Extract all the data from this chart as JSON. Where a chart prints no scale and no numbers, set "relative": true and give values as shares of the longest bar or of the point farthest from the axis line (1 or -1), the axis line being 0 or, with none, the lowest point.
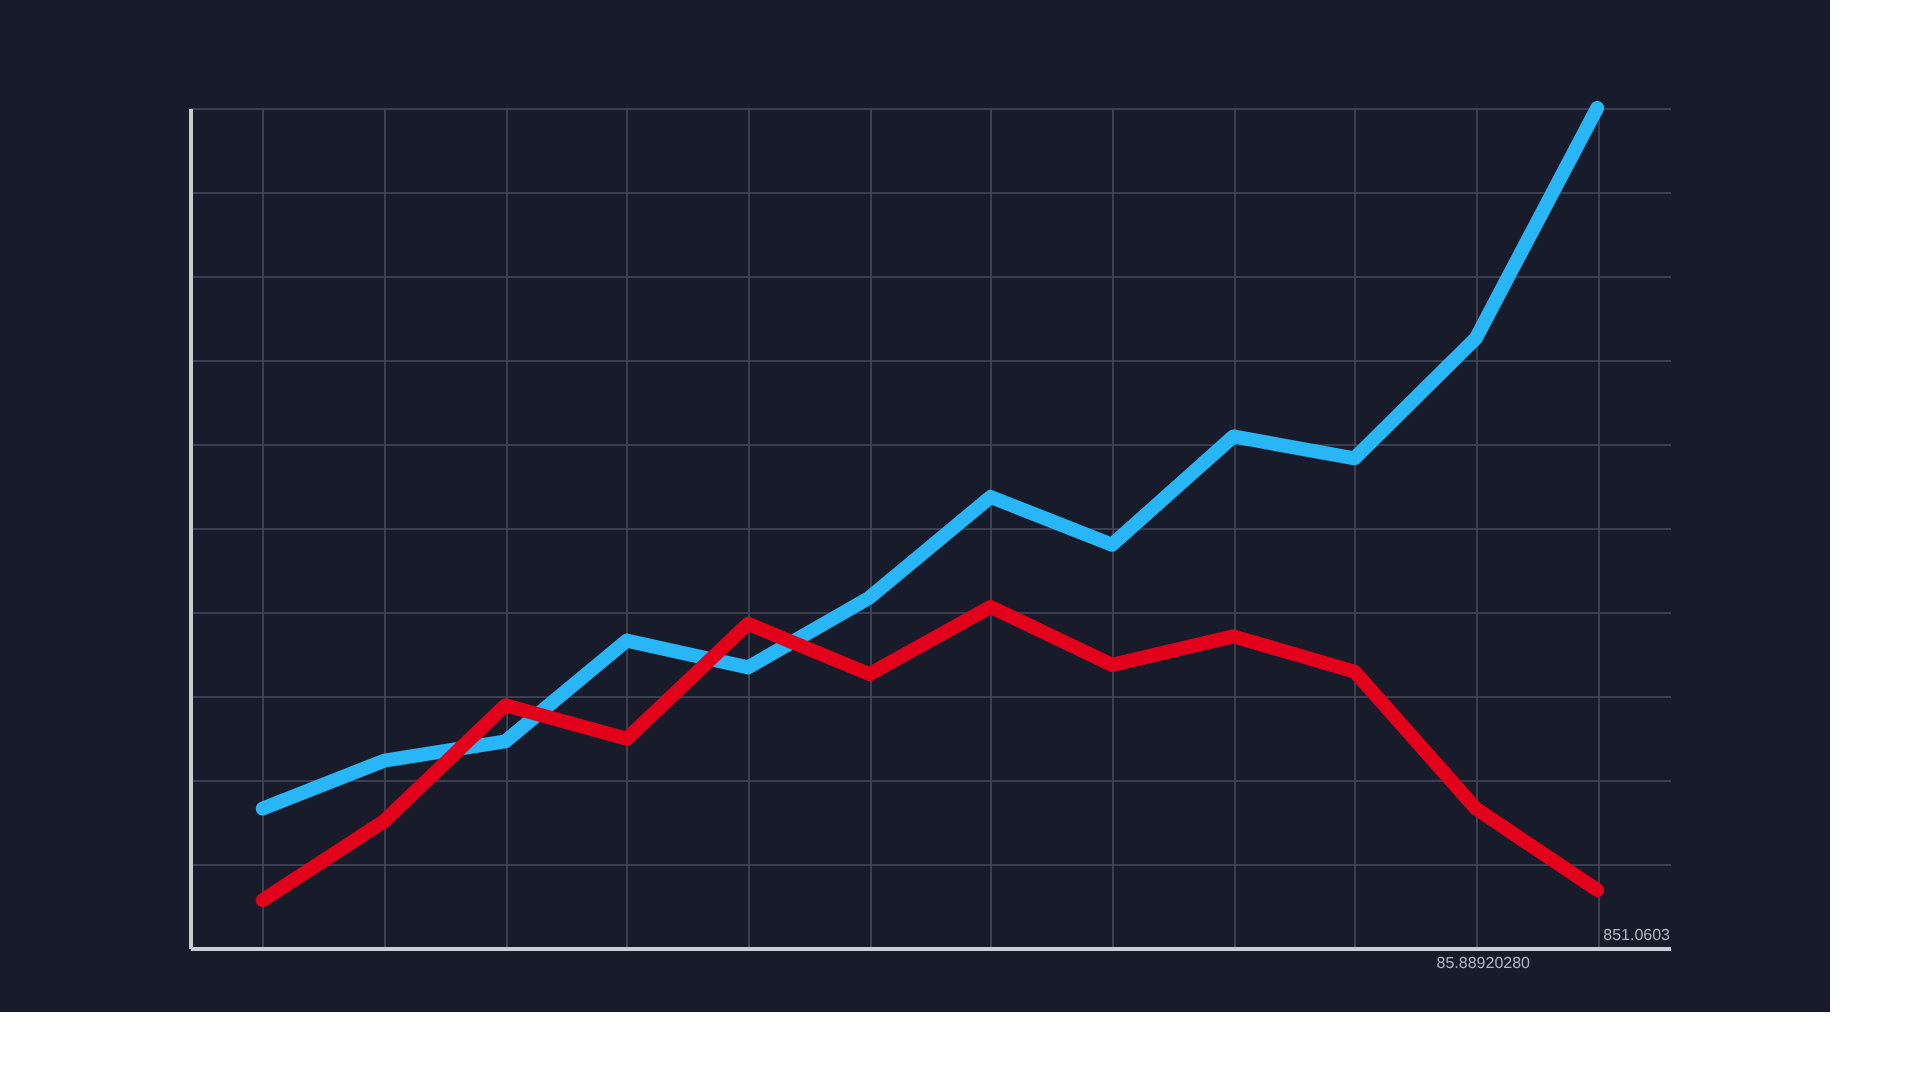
{
  "chart_data": {
    "type": "line",
    "relative": true,
    "grid": true,
    "marker": "none",
    "line_style": "solid",
    "categories": [
      null,
      null,
      null,
      null,
      null,
      null,
      null,
      null,
      null,
      null,
      null,
      null
    ],
    "annotations": [
      "85.88920280",
      "851.0603"
    ],
    "series": [
      {
        "color": "#29b6f6",
        "values": [
          0.166,
          0.223,
          0.246,
          0.366,
          0.334,
          0.417,
          0.537,
          0.48,
          0.609,
          0.583,
          0.726,
          1.0
        ]
      },
      {
        "color": "#e3001b",
        "values": [
          0.057,
          0.151,
          0.289,
          0.249,
          0.386,
          0.326,
          0.406,
          0.337,
          0.371,
          0.329,
          0.166,
          0.069
        ]
      }
    ]
  }
}
